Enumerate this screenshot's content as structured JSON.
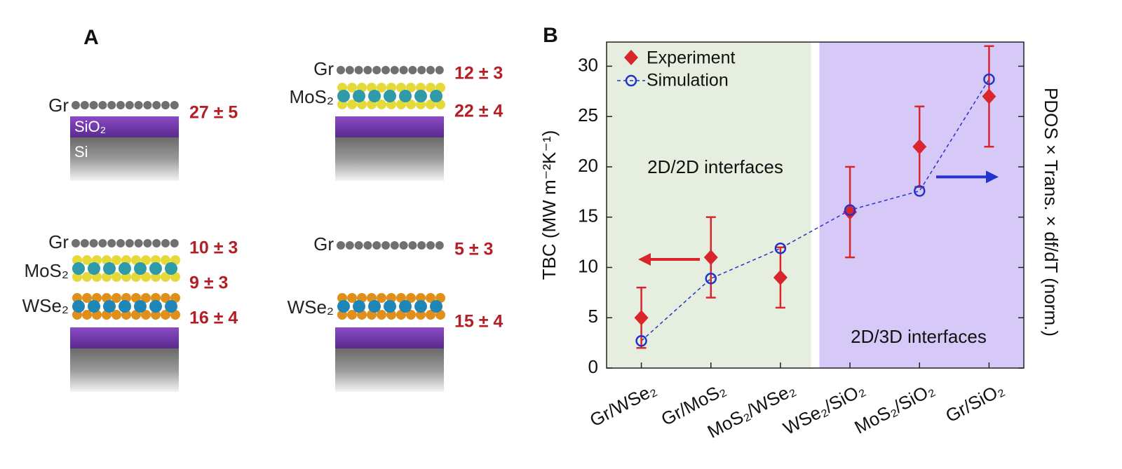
{
  "panel_a": {
    "label": "A",
    "stacks": [
      {
        "layers": [
          "Gr",
          "SiO₂",
          "Si"
        ],
        "values": [
          "27 ± 5"
        ]
      },
      {
        "layers": [
          "Gr",
          "MoS₂"
        ],
        "values": [
          "12 ± 3",
          "22 ± 4"
        ]
      },
      {
        "layers": [
          "Gr",
          "MoS₂",
          "WSe₂"
        ],
        "values": [
          "10 ± 3",
          "9 ± 3",
          "16 ± 4"
        ]
      },
      {
        "layers": [
          "Gr",
          "WSe₂"
        ],
        "values": [
          "5 ± 3",
          "15 ± 4"
        ]
      }
    ]
  },
  "chart_data": {
    "type": "errorbar-line",
    "panel_label": "B",
    "ylabel": "TBC (MW m⁻²K⁻¹)",
    "y2label": "PDOS × Trans. × df/dT (norm.)",
    "categories": [
      "Gr/WSe₂",
      "Gr/MoS₂",
      "MoS₂/WSe₂",
      "WSe₂/SiO₂",
      "MoS₂/SiO₂",
      "Gr/SiO₂"
    ],
    "series": [
      {
        "name": "Experiment",
        "color": "#d9262c",
        "values": [
          5,
          11,
          9,
          15.5,
          22,
          27
        ],
        "errors": [
          3,
          4,
          3,
          4.5,
          4,
          5
        ]
      },
      {
        "name": "Simulation",
        "color": "#2233cc",
        "values": [
          2.7,
          8.9,
          11.9,
          15.7,
          17.6,
          28.7
        ]
      }
    ],
    "ylim": [
      0,
      32.4
    ],
    "yticks": [
      0,
      5,
      10,
      15,
      20,
      25,
      30
    ],
    "annotations": [
      "2D/2D interfaces",
      "2D/3D interfaces"
    ],
    "background_colors": [
      "#e6efdf",
      "#d7c9f7"
    ]
  }
}
